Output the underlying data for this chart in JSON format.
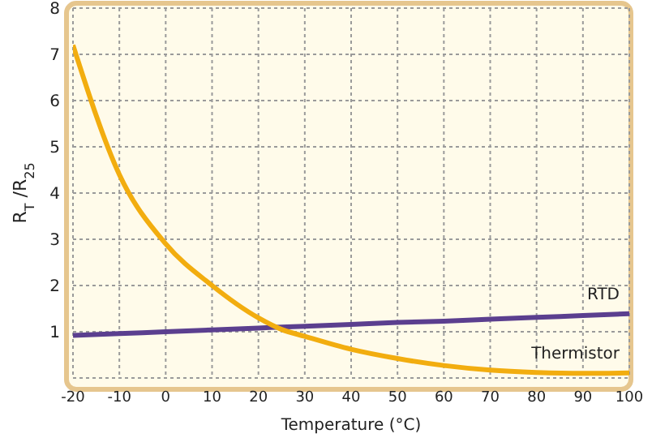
{
  "chart_data": {
    "type": "line",
    "xlabel": "Temperature (°C)",
    "ylabel": "R$_{T}$/R$_{25}$",
    "x": [
      -20,
      -10,
      0,
      10,
      20,
      25,
      30,
      40,
      50,
      60,
      70,
      80,
      90,
      100
    ],
    "series": [
      {
        "name": "RTD",
        "color": "#5b3f8f",
        "values": [
          0.92,
          0.96,
          1.0,
          1.04,
          1.08,
          1.1,
          1.12,
          1.16,
          1.2,
          1.23,
          1.27,
          1.31,
          1.35,
          1.39
        ]
      },
      {
        "name": "Thermistor",
        "color": "#f2ad0f",
        "values": [
          7.2,
          4.4,
          2.9,
          2.0,
          1.3,
          1.05,
          0.9,
          0.62,
          0.42,
          0.27,
          0.17,
          0.12,
          0.1,
          0.11
        ]
      }
    ],
    "xlim": [
      -20,
      100
    ],
    "xticks": [
      -20,
      -10,
      0,
      10,
      20,
      30,
      40,
      50,
      60,
      70,
      80,
      90,
      100
    ],
    "ylim": [
      0,
      8
    ],
    "yticks": [
      {
        "value": 0,
        "label": null
      },
      1,
      2,
      3,
      4,
      5,
      6,
      7,
      8
    ],
    "grid": true,
    "marker": "none",
    "line_style": "solid"
  }
}
